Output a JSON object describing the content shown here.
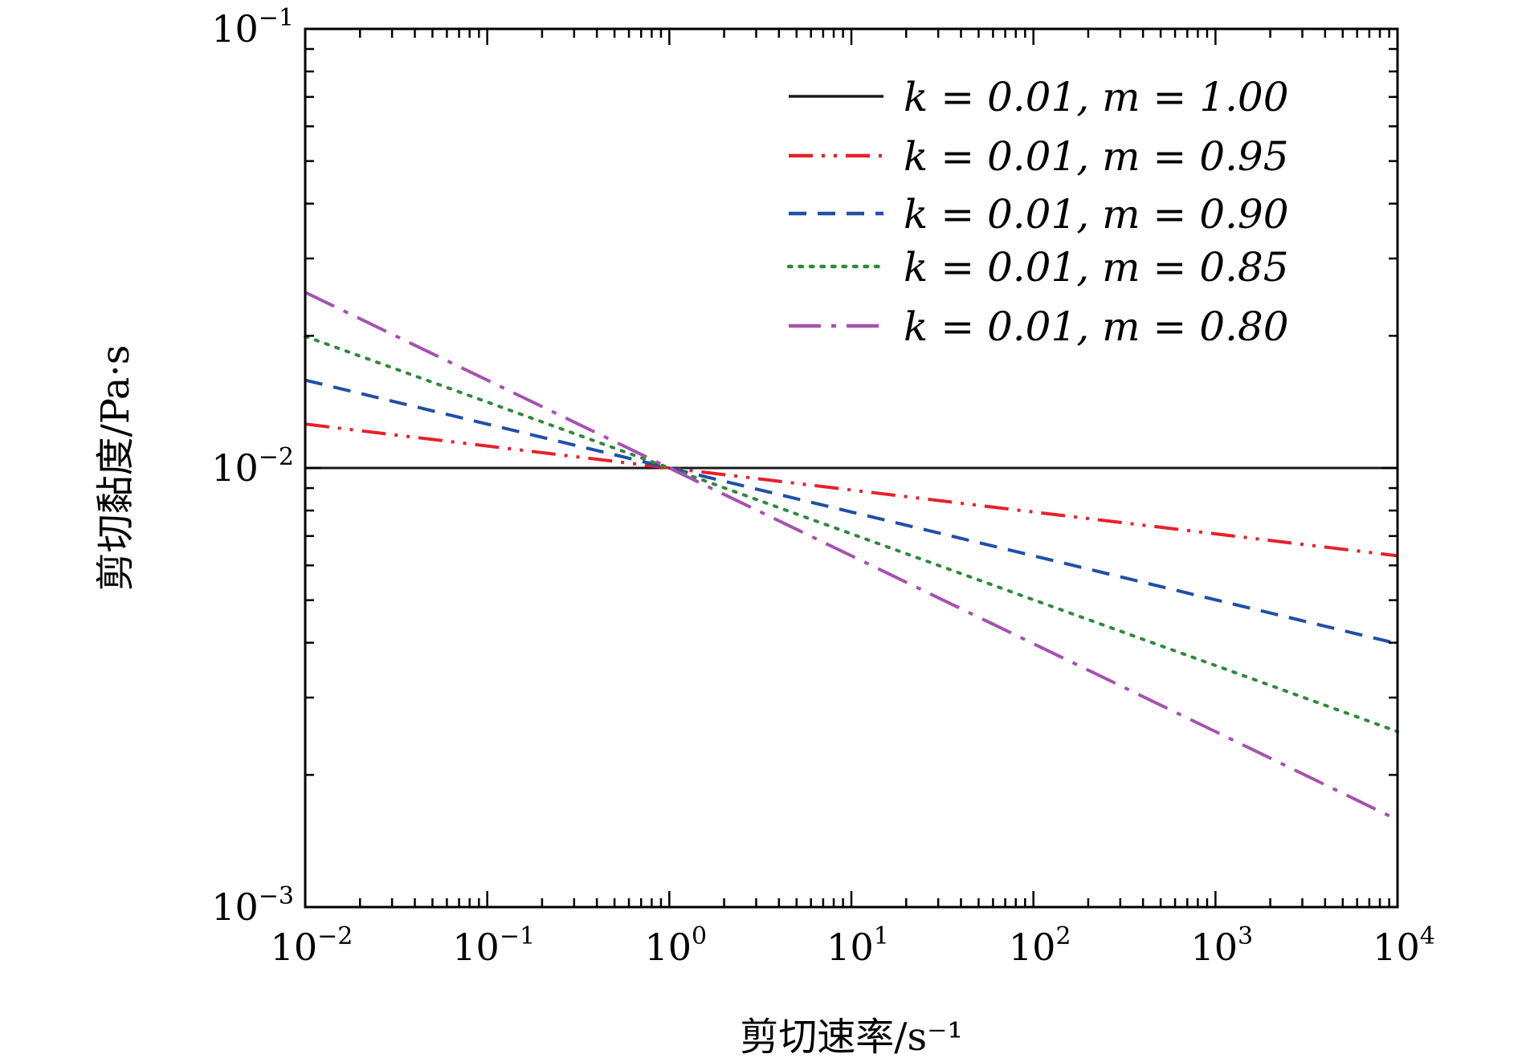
{
  "chart_data": {
    "type": "line",
    "x_scale": "log",
    "y_scale": "log",
    "xlim": [
      0.01,
      10000
    ],
    "ylim": [
      0.001,
      0.1
    ],
    "xlabel": "剪切速率/s⁻¹",
    "ylabel": "剪切黏度/Pa·s",
    "grid": false,
    "legend_position": "top-right",
    "x_ticks": [
      {
        "value": 0.01,
        "base": "10",
        "exp": "−2"
      },
      {
        "value": 0.1,
        "base": "10",
        "exp": "−1"
      },
      {
        "value": 1,
        "base": "10",
        "exp": "0"
      },
      {
        "value": 10,
        "base": "10",
        "exp": "1"
      },
      {
        "value": 100,
        "base": "10",
        "exp": "2"
      },
      {
        "value": 1000,
        "base": "10",
        "exp": "3"
      },
      {
        "value": 10000,
        "base": "10",
        "exp": "4"
      }
    ],
    "y_ticks": [
      {
        "value": 0.001,
        "base": "10",
        "exp": "−3"
      },
      {
        "value": 0.01,
        "base": "10",
        "exp": "−2"
      },
      {
        "value": 0.1,
        "base": "10",
        "exp": "−1"
      }
    ],
    "series": [
      {
        "name": "k = 0.01, m = 1.00",
        "k": 0.01,
        "m": 1.0,
        "color": "#1a1a1a",
        "dash": "solid",
        "x": [
          0.01,
          0.1,
          1,
          10,
          100,
          1000,
          10000
        ],
        "y": [
          0.01,
          0.01,
          0.01,
          0.01,
          0.01,
          0.01,
          0.01
        ]
      },
      {
        "name": "k = 0.01, m = 0.95",
        "k": 0.01,
        "m": 0.95,
        "color": "#e8202a",
        "dash": "dashdotdot",
        "x": [
          0.01,
          0.1,
          1,
          10,
          100,
          1000,
          10000
        ],
        "y": [
          0.01259,
          0.01122,
          0.01,
          0.00891,
          0.00794,
          0.00708,
          0.00631
        ]
      },
      {
        "name": "k = 0.01, m = 0.90",
        "k": 0.01,
        "m": 0.9,
        "color": "#1f4fa8",
        "dash": "dashed",
        "x": [
          0.01,
          0.1,
          1,
          10,
          100,
          1000,
          10000
        ],
        "y": [
          0.01585,
          0.01259,
          0.01,
          0.00794,
          0.00631,
          0.00501,
          0.00398
        ]
      },
      {
        "name": "k = 0.01, m = 0.85",
        "k": 0.01,
        "m": 0.85,
        "color": "#2e8a3a",
        "dash": "dotted",
        "x": [
          0.01,
          0.1,
          1,
          10,
          100,
          1000,
          10000
        ],
        "y": [
          0.01995,
          0.01413,
          0.01,
          0.00708,
          0.00501,
          0.00355,
          0.00251
        ]
      },
      {
        "name": "k = 0.01, m = 0.80",
        "k": 0.01,
        "m": 0.8,
        "color": "#a552b0",
        "dash": "dashdot",
        "x": [
          0.01,
          0.1,
          1,
          10,
          100,
          1000,
          10000
        ],
        "y": [
          0.02512,
          0.01585,
          0.01,
          0.00631,
          0.00398,
          0.00251,
          0.00158
        ]
      }
    ]
  }
}
